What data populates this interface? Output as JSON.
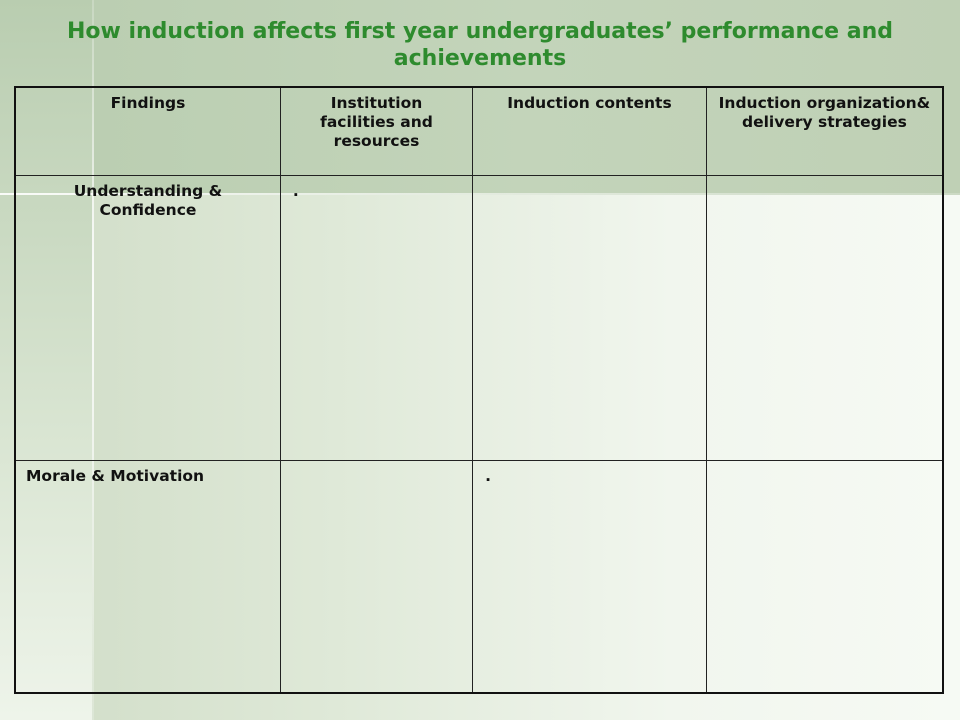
{
  "slide": {
    "title": "How induction affects first year undergraduates’ performance and achievements"
  },
  "table": {
    "headers": [
      "Findings",
      "Institution facilities and resources",
      "Induction contents",
      "Induction organization& delivery strategies"
    ],
    "rows": [
      {
        "finding": "Understanding & Confidence",
        "cells": [
          ".",
          "",
          ""
        ]
      },
      {
        "finding": "Morale & Motivation",
        "cells": [
          "",
          ".",
          ""
        ]
      }
    ]
  },
  "colors": {
    "title": "#2e8b2e",
    "border": "#111111"
  }
}
